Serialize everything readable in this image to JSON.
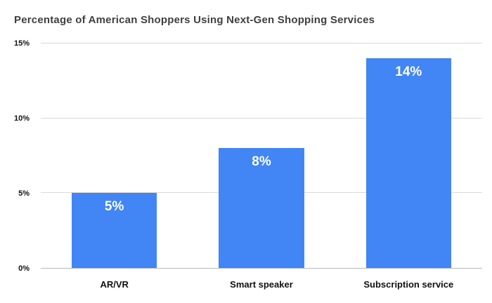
{
  "chart_data": {
    "type": "bar",
    "title": "Percentage of American Shoppers Using Next-Gen Shopping Services",
    "categories": [
      "AR/VR",
      "Smart speaker",
      "Subscription service"
    ],
    "values": [
      5,
      8,
      14
    ],
    "value_labels": [
      "5%",
      "8%",
      "14%"
    ],
    "xlabel": "",
    "ylabel": "",
    "ylim": [
      0,
      15
    ],
    "yticks": [
      0,
      5,
      10,
      15
    ],
    "ytick_labels": [
      "0%",
      "5%",
      "10%",
      "15%"
    ],
    "grid": true,
    "legend_position": "none",
    "colors": {
      "bar": "#4285f4",
      "value_label": "#ffffff",
      "title": "#3f3f3f",
      "axis_label": "#111111",
      "gridline": "#d9d9d9",
      "background": "#ffffff"
    }
  }
}
